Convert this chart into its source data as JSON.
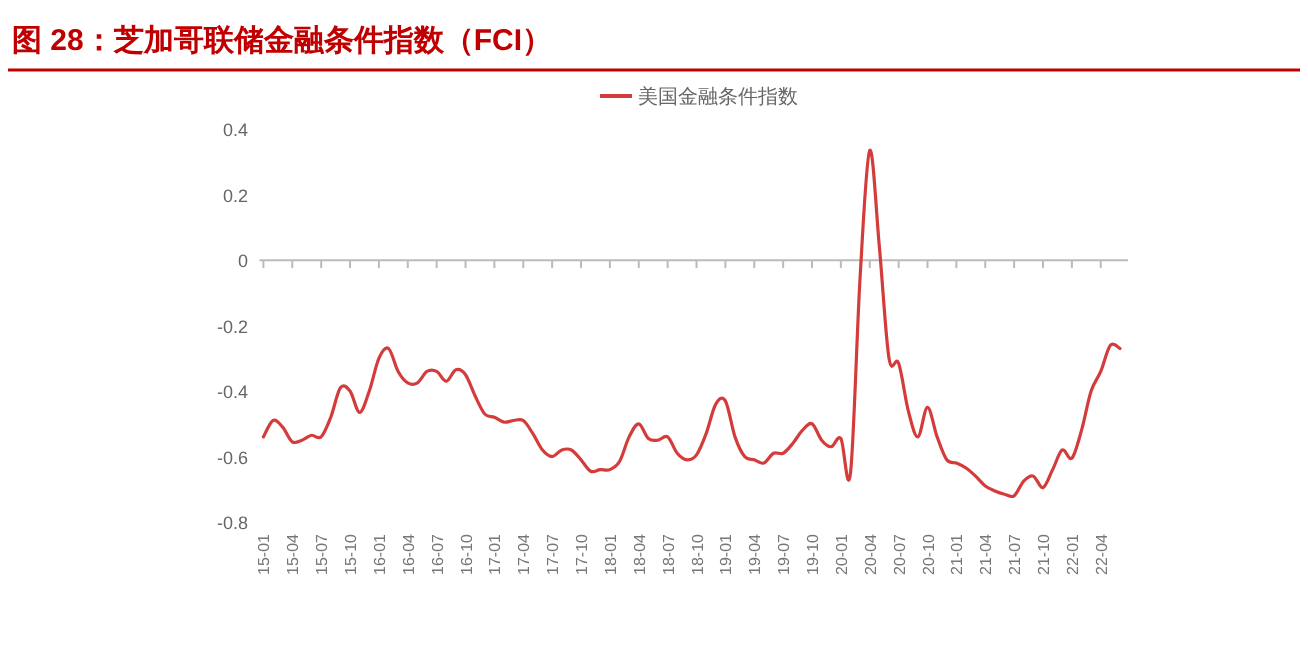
{
  "chart_data": {
    "type": "line",
    "title": "图 28：芝加哥联储金融条件指数（FCI）",
    "categories": [
      "15-01",
      null,
      null,
      "15-04",
      null,
      null,
      "15-07",
      null,
      null,
      "15-10",
      null,
      null,
      "16-01",
      null,
      null,
      "16-04",
      null,
      null,
      "16-07",
      null,
      null,
      "16-10",
      null,
      null,
      "17-01",
      null,
      null,
      "17-04",
      null,
      null,
      "17-07",
      null,
      null,
      "17-10",
      null,
      null,
      "18-01",
      null,
      null,
      "18-04",
      null,
      null,
      "18-07",
      null,
      null,
      "18-10",
      null,
      null,
      "19-01",
      null,
      null,
      "19-04",
      null,
      null,
      "19-07",
      null,
      null,
      "19-10",
      null,
      null,
      "20-01",
      null,
      null,
      "20-04",
      null,
      null,
      "20-07",
      null,
      null,
      "20-10",
      null,
      null,
      "21-01",
      null,
      null,
      "21-04",
      null,
      null,
      "21-07",
      null,
      null,
      "21-10",
      null,
      null,
      "22-01",
      null,
      null,
      "22-04",
      null,
      null
    ],
    "series": [
      {
        "name": "美国金融条件指数",
        "color": "#d43c3c",
        "values": [
          -0.54,
          -0.49,
          -0.51,
          -0.555,
          -0.55,
          -0.535,
          -0.54,
          -0.48,
          -0.39,
          -0.4,
          -0.465,
          -0.4,
          -0.3,
          -0.27,
          -0.34,
          -0.375,
          -0.375,
          -0.34,
          -0.34,
          -0.37,
          -0.335,
          -0.35,
          -0.415,
          -0.47,
          -0.48,
          -0.495,
          -0.49,
          -0.49,
          -0.53,
          -0.58,
          -0.6,
          -0.58,
          -0.58,
          -0.61,
          -0.645,
          -0.64,
          -0.64,
          -0.615,
          -0.54,
          -0.5,
          -0.545,
          -0.55,
          -0.54,
          -0.59,
          -0.61,
          -0.595,
          -0.53,
          -0.44,
          -0.43,
          -0.54,
          -0.6,
          -0.61,
          -0.62,
          -0.59,
          -0.59,
          -0.56,
          -0.52,
          -0.5,
          -0.55,
          -0.57,
          -0.545,
          -0.65,
          -0.05,
          0.335,
          0.04,
          -0.3,
          -0.315,
          -0.46,
          -0.54,
          -0.45,
          -0.54,
          -0.61,
          -0.62,
          -0.635,
          -0.66,
          -0.69,
          -0.705,
          -0.715,
          -0.72,
          -0.675,
          -0.66,
          -0.695,
          -0.64,
          -0.58,
          -0.605,
          -0.52,
          -0.4,
          -0.34,
          -0.26,
          -0.27
        ]
      }
    ],
    "ylim": [
      -0.8,
      0.4
    ],
    "yticks": [
      -0.8,
      -0.6,
      -0.4,
      -0.2,
      0,
      0.2,
      0.4
    ],
    "legend": "top"
  }
}
